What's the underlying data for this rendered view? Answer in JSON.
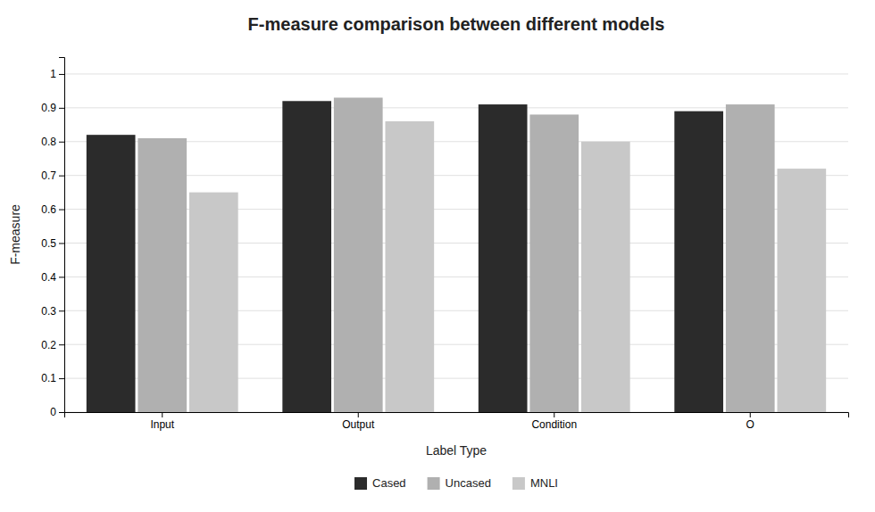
{
  "chart_data": {
    "type": "bar",
    "title": "F-measure comparison between different models",
    "xlabel": "Label Type",
    "ylabel": "F-measure",
    "categories": [
      "Input",
      "Output",
      "Condition",
      "O"
    ],
    "series": [
      {
        "name": "Cased",
        "color": "#2b2b2b",
        "values": [
          0.82,
          0.92,
          0.91,
          0.89
        ]
      },
      {
        "name": "Uncased",
        "color": "#b0b0b0",
        "values": [
          0.81,
          0.93,
          0.88,
          0.91
        ]
      },
      {
        "name": "MNLI",
        "color": "#c8c8c8",
        "values": [
          0.65,
          0.86,
          0.8,
          0.72
        ]
      }
    ],
    "ylim": [
      0,
      1.05
    ],
    "yticks": [
      0,
      0.1,
      0.2,
      0.3,
      0.4,
      0.5,
      0.6,
      0.7,
      0.8,
      0.9,
      1
    ],
    "grid": true,
    "legend": "bottom"
  }
}
